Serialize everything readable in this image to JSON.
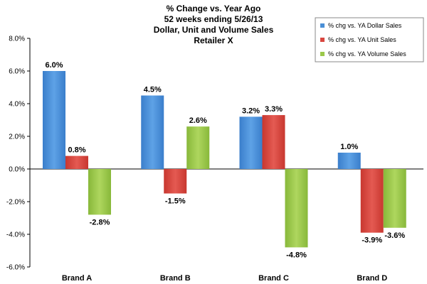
{
  "chart_data": {
    "type": "bar",
    "title_lines": [
      "% Change vs. Year Ago",
      "52 weeks ending 5/26/13",
      "Dollar, Unit and Volume Sales",
      "Retailer X"
    ],
    "categories": [
      "Brand A",
      "Brand B",
      "Brand C",
      "Brand D"
    ],
    "series": [
      {
        "name": "% chg vs. YA Dollar Sales",
        "color": "#4a8fd6",
        "values": [
          6.0,
          4.5,
          3.2,
          1.0
        ],
        "labels": [
          "6.0%",
          "4.5%",
          "3.2%",
          "1.0%"
        ]
      },
      {
        "name": "% chg vs. YA Unit Sales",
        "color": "#d9463f",
        "values": [
          0.8,
          -1.5,
          3.3,
          -3.9
        ],
        "labels": [
          "0.8%",
          "-1.5%",
          "3.3%",
          "-3.9%"
        ]
      },
      {
        "name": "% chg vs. YA Volume Sales",
        "color": "#9bc84a",
        "values": [
          -2.8,
          2.6,
          -4.8,
          -3.6
        ],
        "labels": [
          "-2.8%",
          "2.6%",
          "-4.8%",
          "-3.6%"
        ]
      }
    ],
    "ylim": [
      -6.0,
      8.0
    ],
    "yticks": [
      8.0,
      6.0,
      4.0,
      2.0,
      0.0,
      -2.0,
      -4.0,
      -6.0
    ],
    "ytick_labels": [
      "8.0%",
      "6.0%",
      "4.0%",
      "2.0%",
      "0.0%",
      "-2.0%",
      "-4.0%",
      "-6.0%"
    ],
    "grid": false,
    "legend_position": "top-right"
  }
}
